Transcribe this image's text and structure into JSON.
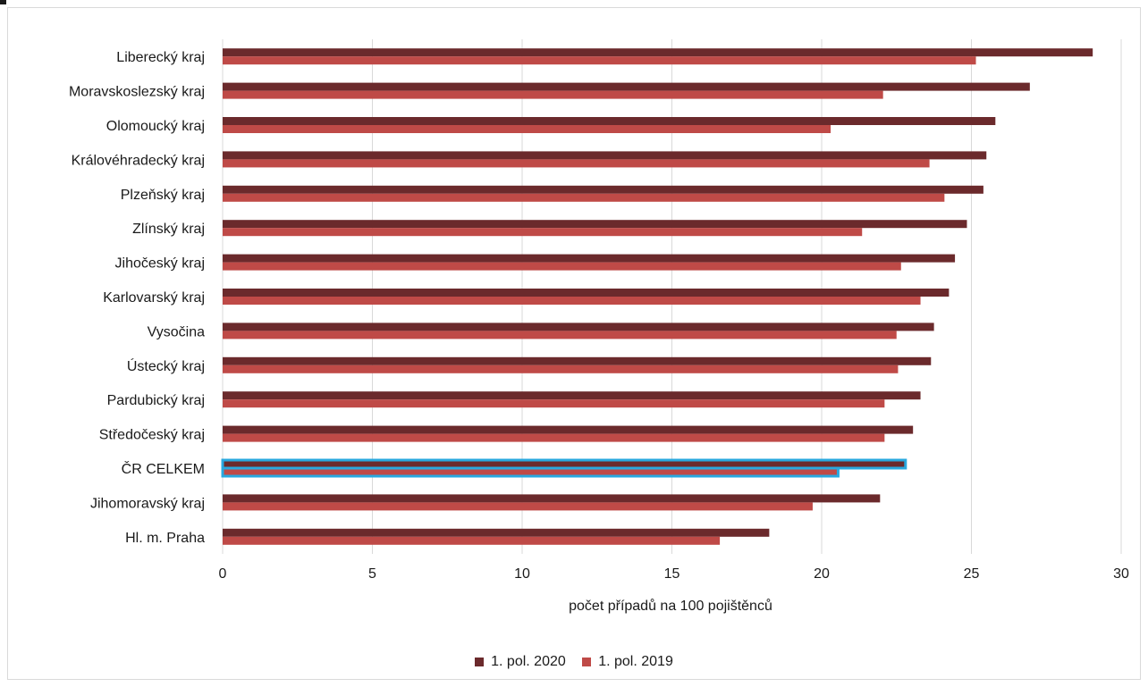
{
  "colors": {
    "series_2020": "#6b2a2c",
    "series_2019": "#bf4a47",
    "highlight": "#29a8df",
    "grid": "#d9d9d9"
  },
  "chart_data": {
    "type": "bar",
    "orientation": "horizontal",
    "categories": [
      "Liberecký kraj",
      "Moravskoslezský kraj",
      "Olomoucký kraj",
      "Královéhradecký kraj",
      "Plzeňský kraj",
      "Zlínský kraj",
      "Jihočeský kraj",
      "Karlovarský kraj",
      "Vysočina",
      "Ústecký kraj",
      "Pardubický kraj",
      "Středočeský kraj",
      "ČR CELKEM",
      "Jihomoravský kraj",
      "Hl. m. Praha"
    ],
    "series": [
      {
        "name": "1. pol. 2020",
        "values": [
          29.05,
          26.95,
          25.8,
          25.5,
          25.4,
          24.85,
          24.45,
          24.25,
          23.75,
          23.65,
          23.3,
          23.05,
          22.8,
          21.95,
          18.25
        ]
      },
      {
        "name": "1. pol. 2019",
        "values": [
          25.15,
          22.05,
          20.3,
          23.6,
          24.1,
          21.35,
          22.65,
          23.3,
          22.5,
          22.55,
          22.1,
          22.1,
          20.55,
          19.7,
          16.6
        ]
      }
    ],
    "highlighted_category": "ČR CELKEM",
    "xlabel": "počet případů na 100 pojištěnců",
    "ylabel": "",
    "xlim": [
      0,
      30
    ],
    "xticks": [
      0,
      5,
      10,
      15,
      20,
      25,
      30
    ],
    "grid": "vertical",
    "legend_position": "bottom"
  }
}
